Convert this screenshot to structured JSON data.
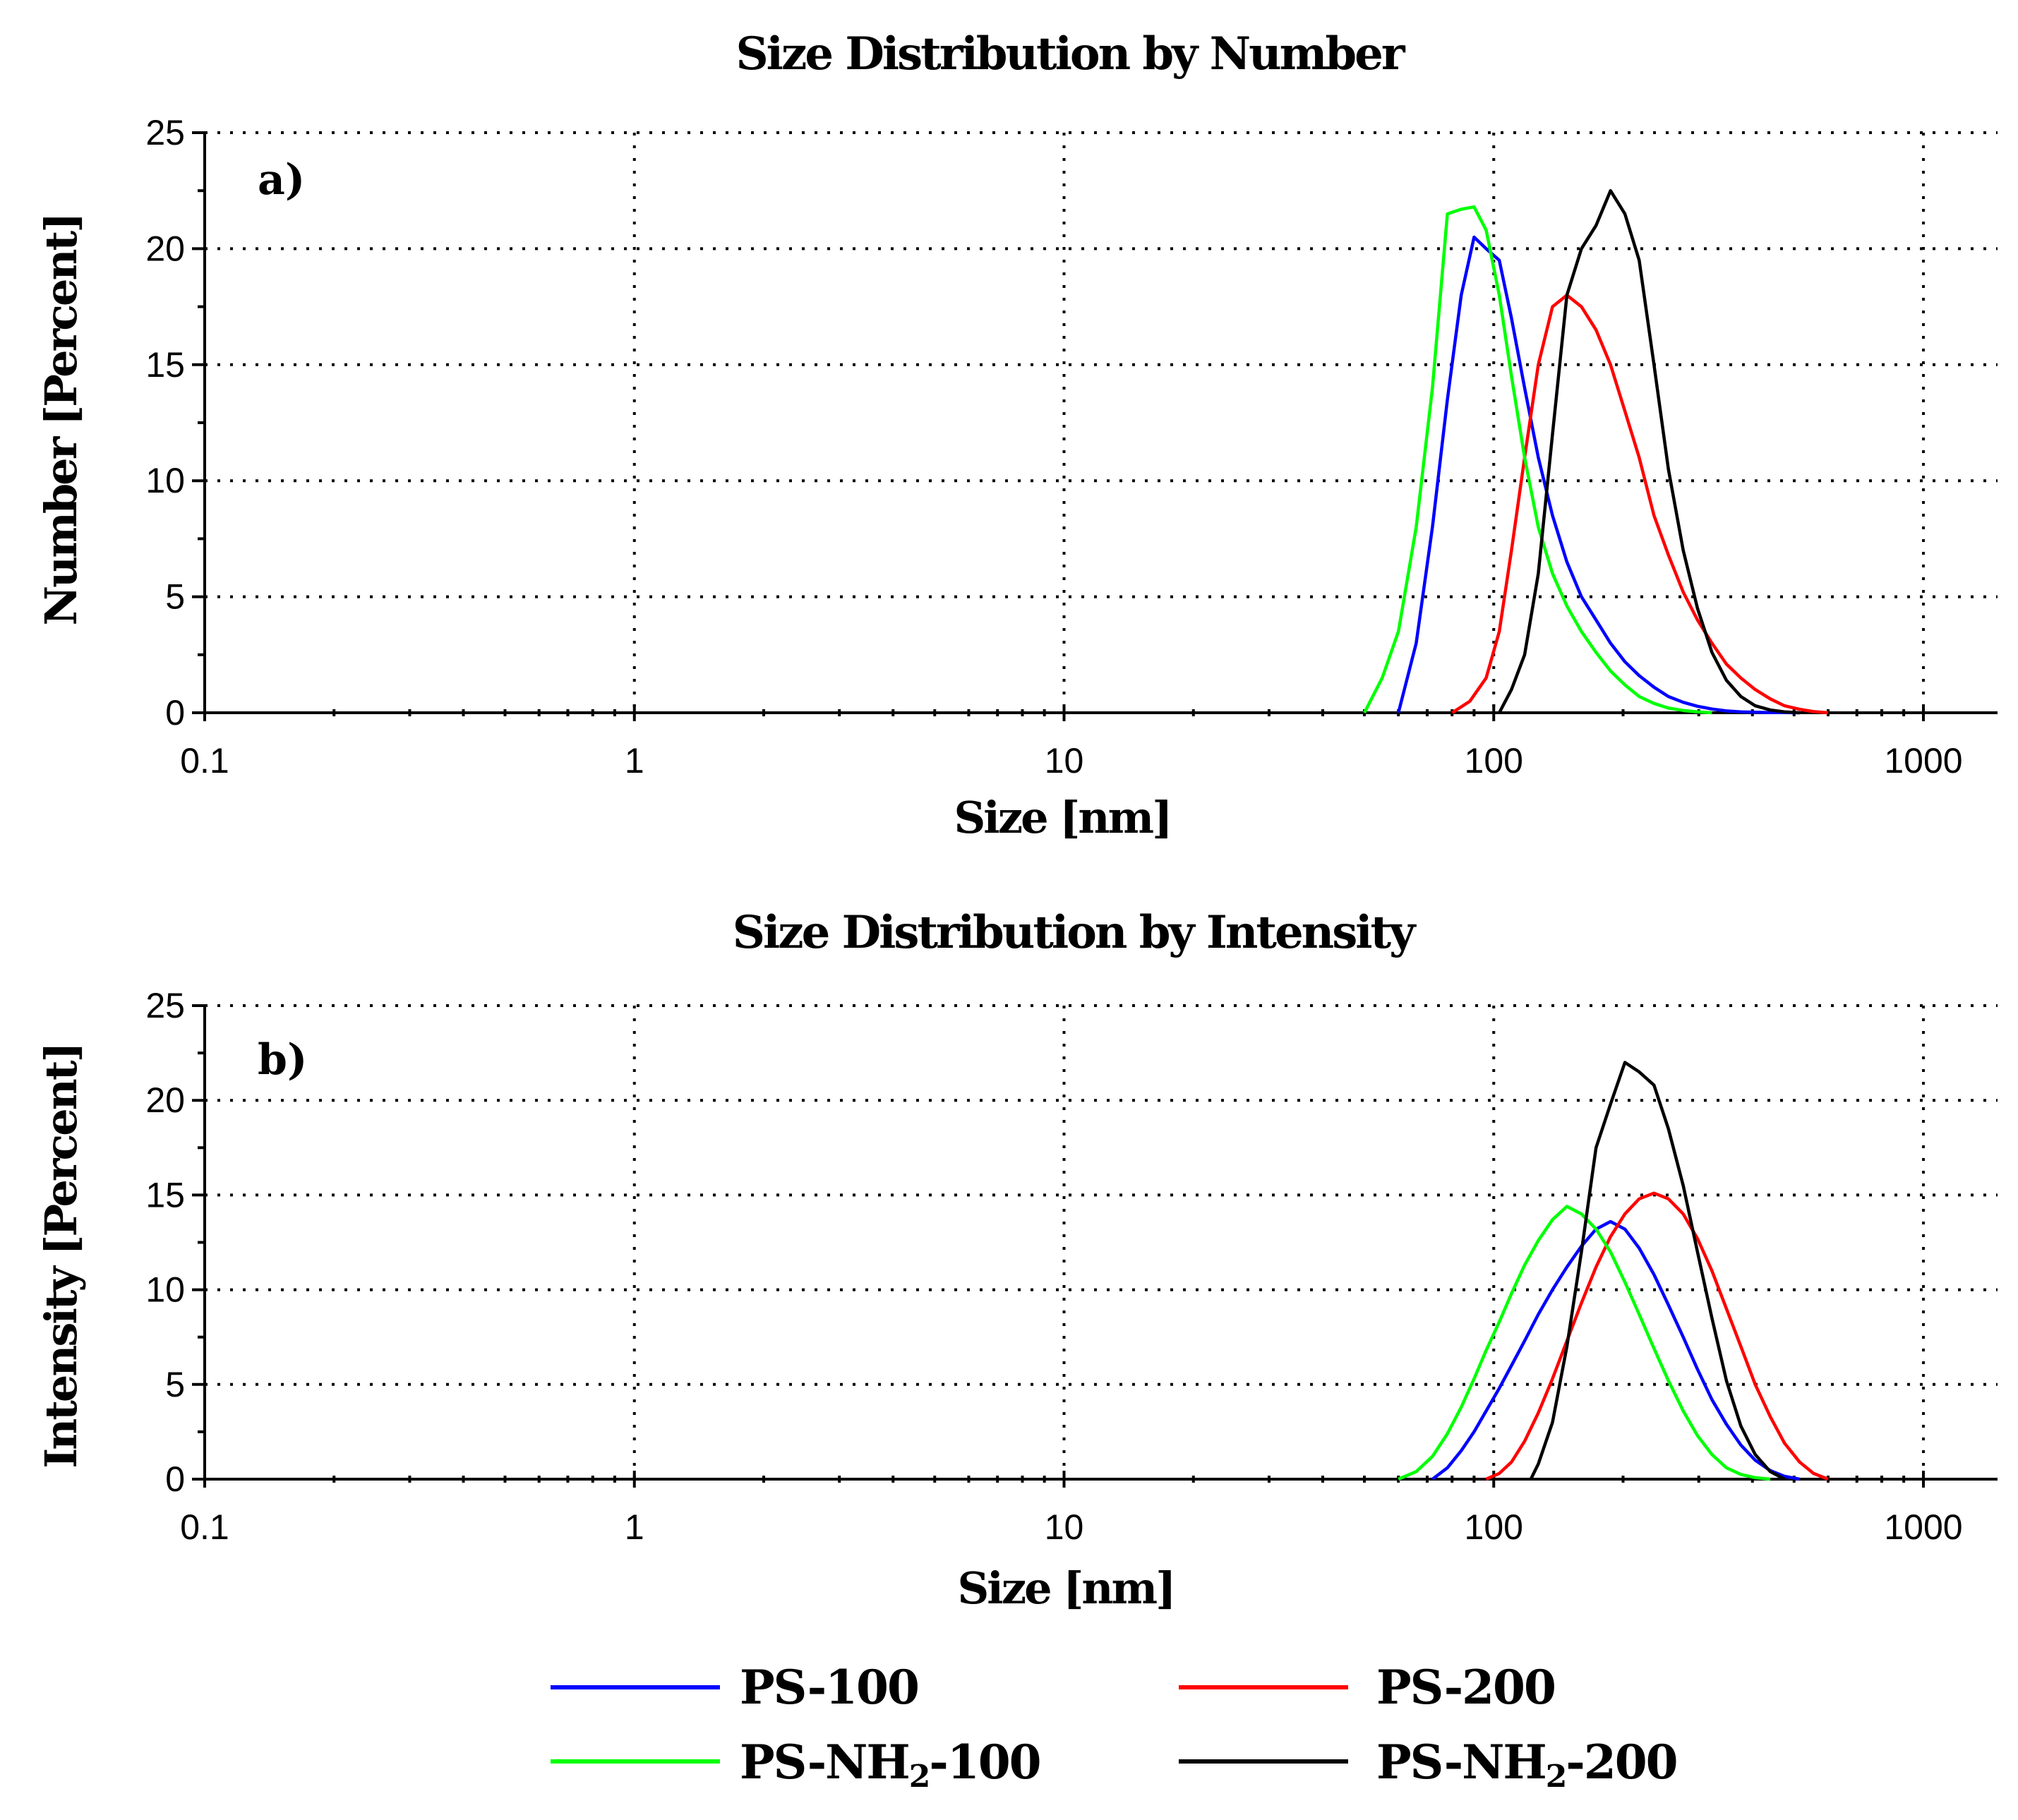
{
  "chart_data": [
    {
      "type": "line",
      "title": "Size Distribution by Number",
      "panel_label": "a)",
      "xlabel": "Size [nm]",
      "ylabel": "Number [Percent]",
      "xscale": "log",
      "xlim": [
        0.1,
        1500
      ],
      "ylim": [
        0,
        25
      ],
      "xticks": [
        0.1,
        1,
        10,
        100,
        1000
      ],
      "xtick_labels": [
        "0.1",
        "1",
        "10",
        "100",
        "1000"
      ],
      "yticks": [
        0,
        5,
        10,
        15,
        20,
        25
      ],
      "ytick_labels": [
        "0",
        "5",
        "10",
        "15",
        "20",
        "25"
      ],
      "grid": true,
      "series": [
        {
          "name": "PS-100",
          "color": "#0000ff",
          "x": [
            60,
            66,
            72,
            78,
            84,
            90,
            96,
            103,
            110,
            118,
            127,
            137,
            148,
            160,
            173,
            187,
            202,
            218,
            236,
            255,
            276,
            298,
            322,
            348,
            376,
            406,
            440,
            475,
            515
          ],
          "y": [
            0,
            3,
            8,
            13.5,
            18,
            20.5,
            20,
            19.5,
            17,
            14,
            11,
            8.5,
            6.5,
            5,
            4,
            3,
            2.2,
            1.6,
            1.1,
            0.7,
            0.45,
            0.28,
            0.16,
            0.08,
            0.04,
            0.02,
            0.01,
            0.005,
            0
          ]
        },
        {
          "name": "PS-200",
          "color": "#ff0000",
          "x": [
            80,
            88,
            96,
            103,
            110,
            118,
            127,
            137,
            148,
            160,
            173,
            187,
            202,
            218,
            236,
            255,
            276,
            298,
            322,
            348,
            376,
            406,
            440,
            475,
            515,
            555,
            600
          ],
          "y": [
            0,
            0.5,
            1.5,
            3.5,
            7,
            11,
            15,
            17.5,
            18,
            17.5,
            16.5,
            15,
            13,
            11,
            8.5,
            6.8,
            5.2,
            4,
            3,
            2.1,
            1.5,
            1,
            0.6,
            0.3,
            0.15,
            0.05,
            0
          ]
        },
        {
          "name": "PS-NH₂-100",
          "color": "#00ff00",
          "x": [
            50,
            55,
            60,
            66,
            72,
            78,
            84,
            90,
            96,
            103,
            110,
            118,
            127,
            137,
            148,
            160,
            173,
            187,
            202,
            218,
            236,
            255,
            276,
            298,
            322
          ],
          "y": [
            0,
            1.5,
            3.5,
            8,
            14,
            21.5,
            21.7,
            21.8,
            20.8,
            18,
            14.5,
            11,
            8,
            6,
            4.6,
            3.5,
            2.6,
            1.8,
            1.2,
            0.7,
            0.4,
            0.2,
            0.1,
            0.04,
            0
          ]
        },
        {
          "name": "PS-NH₂-200",
          "color": "#000000",
          "x": [
            103,
            110,
            118,
            127,
            137,
            148,
            160,
            173,
            187,
            202,
            218,
            236,
            255,
            276,
            298,
            322,
            348,
            376,
            406,
            440,
            475,
            515
          ],
          "y": [
            0,
            1,
            2.5,
            6,
            12,
            18,
            20,
            21,
            22.5,
            21.5,
            19.5,
            15,
            10.5,
            7,
            4.5,
            2.6,
            1.4,
            0.7,
            0.3,
            0.12,
            0.04,
            0
          ]
        }
      ]
    },
    {
      "type": "line",
      "title": "Size Distribution by Intensity",
      "panel_label": "b)",
      "xlabel": "Size [nm]",
      "ylabel": "Intensity [Percent]",
      "xscale": "log",
      "xlim": [
        0.1,
        1500
      ],
      "ylim": [
        0,
        25
      ],
      "xticks": [
        0.1,
        1,
        10,
        100,
        1000
      ],
      "xtick_labels": [
        "0.1",
        "1",
        "10",
        "100",
        "1000"
      ],
      "yticks": [
        0,
        5,
        10,
        15,
        20,
        25
      ],
      "ytick_labels": [
        "0",
        "5",
        "10",
        "15",
        "20",
        "25"
      ],
      "grid": true,
      "series": [
        {
          "name": "PS-100",
          "color": "#0000ff",
          "x": [
            72,
            78,
            84,
            90,
            96,
            103,
            110,
            118,
            127,
            137,
            148,
            160,
            173,
            187,
            202,
            218,
            236,
            255,
            276,
            298,
            322,
            348,
            376,
            406,
            440,
            475,
            515
          ],
          "y": [
            0,
            0.6,
            1.5,
            2.5,
            3.6,
            4.8,
            6,
            7.3,
            8.7,
            10,
            11.2,
            12.3,
            13.2,
            13.6,
            13.2,
            12.2,
            10.8,
            9.2,
            7.5,
            5.8,
            4.2,
            2.9,
            1.8,
            1,
            0.45,
            0.15,
            0
          ]
        },
        {
          "name": "PS-200",
          "color": "#ff0000",
          "x": [
            96,
            103,
            110,
            118,
            127,
            137,
            148,
            160,
            173,
            187,
            202,
            218,
            236,
            255,
            276,
            298,
            322,
            348,
            376,
            406,
            440,
            475,
            515,
            555,
            600
          ],
          "y": [
            0,
            0.3,
            0.9,
            2,
            3.5,
            5.3,
            7.3,
            9.3,
            11.2,
            12.8,
            14,
            14.8,
            15.1,
            14.8,
            14,
            12.7,
            11,
            9,
            7,
            5,
            3.3,
            1.9,
            0.9,
            0.3,
            0
          ]
        },
        {
          "name": "PS-NH₂-100",
          "color": "#00ff00",
          "x": [
            60,
            66,
            72,
            78,
            84,
            90,
            96,
            103,
            110,
            118,
            127,
            137,
            148,
            160,
            173,
            187,
            202,
            218,
            236,
            255,
            276,
            298,
            322,
            348,
            376,
            406,
            440
          ],
          "y": [
            0,
            0.4,
            1.2,
            2.4,
            3.8,
            5.3,
            6.8,
            8.3,
            9.8,
            11.3,
            12.6,
            13.7,
            14.4,
            14,
            13.2,
            12,
            10.4,
            8.7,
            6.9,
            5.2,
            3.6,
            2.3,
            1.3,
            0.6,
            0.25,
            0.08,
            0
          ]
        },
        {
          "name": "PS-NH₂-200",
          "color": "#000000",
          "x": [
            122,
            127,
            137,
            148,
            160,
            173,
            187,
            202,
            218,
            236,
            255,
            276,
            298,
            322,
            348,
            376,
            406,
            440,
            475
          ],
          "y": [
            0,
            0.8,
            3,
            7,
            12,
            17.5,
            19.8,
            22,
            21.5,
            20.8,
            18.5,
            15.5,
            12,
            8.5,
            5.2,
            2.8,
            1.3,
            0.4,
            0
          ]
        }
      ]
    }
  ],
  "legend": {
    "items": [
      {
        "label": "PS-100",
        "color": "#0000ff"
      },
      {
        "label": "PS-200",
        "color": "#ff0000"
      },
      {
        "label": "PS-NH",
        "subscript": "2",
        "suffix": "-100",
        "color": "#00ff00"
      },
      {
        "label": "PS-NH",
        "subscript": "2",
        "suffix": "-200",
        "color": "#000000"
      }
    ]
  }
}
